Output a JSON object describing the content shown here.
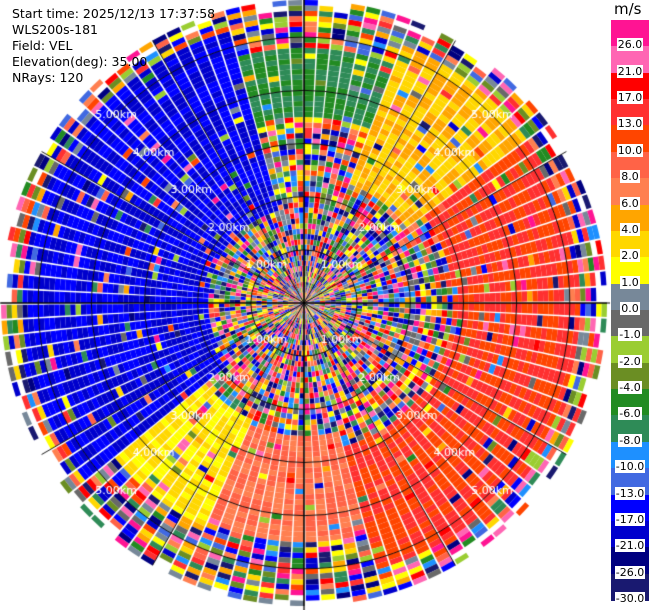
{
  "header": {
    "start_time": "Start time: 2025/12/13 17:37:58",
    "station": "WLS200s-181",
    "field": "Field: VEL",
    "elevation": "Elevation(deg): 35.00",
    "nrays": "NRays: 120"
  },
  "colorbar": {
    "unit": "m/s",
    "labels": [
      "26.0",
      "21.0",
      "17.0",
      "13.0",
      "10.0",
      "8.0",
      "6.0",
      "4.0",
      "2.0",
      "1.0",
      "0.0",
      "-1.0",
      "-2.0",
      "-4.0",
      "-6.0",
      "-8.0",
      "-10.0",
      "-13.0",
      "-17.0",
      "-21.0",
      "-26.0",
      "-30.0"
    ],
    "colors": [
      "#ff1493",
      "#ff66b3",
      "#ff0000",
      "#ff3030",
      "#ff4500",
      "#ff6347",
      "#ff7f50",
      "#ffa500",
      "#ffd700",
      "#ffff00",
      "#778899",
      "#696969",
      "#9acd32",
      "#6b8e23",
      "#228b22",
      "#2e8b57",
      "#1e90ff",
      "#4169e1",
      "#0000ff",
      "#0000cd",
      "#000080",
      "#191970"
    ]
  },
  "chart_data": {
    "type": "ppi",
    "field": "VEL",
    "units": "m/s",
    "nrays": 120,
    "elevation_deg": 35.0,
    "range_ring_labels": [
      "1.00km",
      "2.00km",
      "3.00km",
      "4.00km",
      "5.00km"
    ],
    "max_range_km": 5.7,
    "gate_km": 0.1,
    "color_levels": [
      -30,
      -26,
      -21,
      -17,
      -13,
      -10,
      -8,
      -6,
      -4,
      -2,
      -1,
      0,
      1,
      2,
      4,
      6,
      8,
      10,
      13,
      17,
      21,
      26
    ],
    "coherent_velocity_sectors": [
      {
        "from_deg": 230,
        "to_deg": 345,
        "range_km": [
          1.8,
          5.3
        ],
        "value": -17
      },
      {
        "from_deg": 235,
        "to_deg": 250,
        "range_km": [
          2.2,
          4.0
        ],
        "value": -8
      },
      {
        "from_deg": 205,
        "to_deg": 232,
        "range_km": [
          2.4,
          4.6
        ],
        "value": 2
      },
      {
        "from_deg": 20,
        "to_deg": 55,
        "range_km": [
          2.4,
          5.2
        ],
        "value": 4
      },
      {
        "from_deg": 55,
        "to_deg": 165,
        "range_km": [
          2.8,
          5.2
        ],
        "value": 13
      },
      {
        "from_deg": 165,
        "to_deg": 205,
        "range_km": [
          2.5,
          4.5
        ],
        "value": 8
      },
      {
        "from_deg": 345,
        "to_deg": 20,
        "range_km": [
          3.5,
          4.8
        ],
        "value": -6
      }
    ]
  }
}
